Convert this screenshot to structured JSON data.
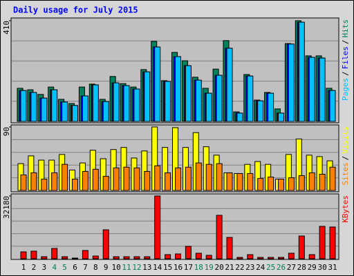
{
  "chart_data": {
    "type": "bar",
    "title": "Daily usage for July 2015",
    "categories": [
      "1",
      "2",
      "3",
      "4",
      "5",
      "6",
      "7",
      "8",
      "9",
      "10",
      "11",
      "12",
      "13",
      "14",
      "15",
      "16",
      "17",
      "18",
      "19",
      "20",
      "21",
      "22",
      "23",
      "24",
      "25",
      "26",
      "27",
      "28",
      "29",
      "30",
      "31"
    ],
    "label_colors": [
      "#000000",
      "#000000",
      "#000000",
      "#00805c",
      "#00805c",
      "#000000",
      "#000000",
      "#000000",
      "#000000",
      "#000000",
      "#00805c",
      "#00805c",
      "#000000",
      "#000000",
      "#000000",
      "#000000",
      "#000000",
      "#00805c",
      "#00805c",
      "#000000",
      "#000000",
      "#000000",
      "#000000",
      "#000000",
      "#00805c",
      "#00805c",
      "#000000",
      "#000000",
      "#000000",
      "#000000",
      "#000000"
    ],
    "ylabel_separator": "/",
    "panels": [
      {
        "ylim": [
          0,
          410
        ],
        "yticks": [
          410
        ],
        "series": [
          {
            "name": "Hits",
            "color": "#00805c",
            "values": [
              135,
              129,
              110,
              140,
              90,
              73,
              140,
              152,
              90,
              183,
              154,
              140,
              211,
              326,
              166,
              281,
              247,
              180,
              135,
              213,
              329,
              39,
              191,
              87,
              118,
              51,
              317,
              410,
              267,
              267,
              135
            ]
          },
          {
            "name": "Files",
            "color": "#0000ff",
            "values": [
              126,
              118,
              95,
              129,
              79,
              65,
              104,
              149,
              81,
              157,
              146,
              132,
              202,
              303,
              163,
              264,
              227,
              168,
              115,
              188,
              298,
              34,
              185,
              84,
              115,
              34,
              315,
              404,
              261,
              258,
              126
            ]
          },
          {
            "name": "Pages",
            "color": "#00c0ff",
            "values": [
              126,
              118,
              95,
              129,
              79,
              65,
              104,
              149,
              81,
              157,
              146,
              132,
              202,
              303,
              163,
              264,
              227,
              168,
              115,
              188,
              298,
              34,
              185,
              84,
              115,
              34,
              315,
              404,
              261,
              258,
              126
            ]
          }
        ]
      },
      {
        "ylim": [
          0,
          90
        ],
        "yticks": [
          90
        ],
        "series": [
          {
            "name": "Visits",
            "color": "#ffff00",
            "values": [
              38,
              49,
              43,
              43,
              51,
              29,
              39,
              57,
              45,
              58,
              61,
              46,
              56,
              90,
              61,
              89,
              61,
              82,
              62,
              50,
              25,
              24,
              37,
              41,
              37,
              16,
              51,
              73,
              50,
              48,
              42
            ]
          },
          {
            "name": "Sites",
            "color": "#ff8000",
            "values": [
              22,
              25,
              16,
              25,
              37,
              16,
              27,
              30,
              20,
              32,
              33,
              32,
              27,
              35,
              25,
              32,
              33,
              39,
              37,
              38,
              25,
              24,
              24,
              17,
              19,
              16,
              18,
              21,
              25,
              23,
              33
            ]
          }
        ]
      },
      {
        "ylim": [
          0,
          32180
        ],
        "yticks": [
          32180
        ],
        "series": [
          {
            "name": "KBytes",
            "color": "#ff0000",
            "values": [
              3536,
              3890,
              1060,
              5300,
              1060,
              350,
              4240,
              1400,
              14850,
              1060,
              1060,
              1060,
              1060,
              32180,
              2120,
              2470,
              6360,
              2830,
              1770,
              22280,
              10960,
              700,
              2120,
              700,
              700,
              700,
              2830,
              11670,
              2120,
              16620,
              16270
            ]
          }
        ]
      }
    ]
  }
}
